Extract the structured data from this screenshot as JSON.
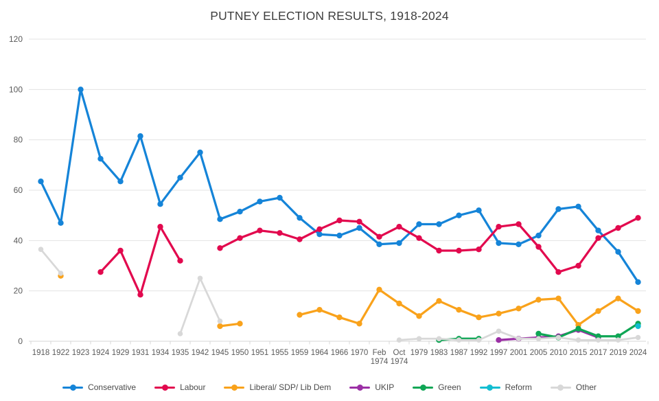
{
  "chart_data": {
    "type": "line",
    "title": "PUTNEY ELECTION RESULTS, 1918-2024",
    "xlabel": "",
    "ylabel": "",
    "ylim": [
      0,
      120
    ],
    "ytick_step": 20,
    "grid": true,
    "legend_position": "bottom",
    "axis_text_color": "#595959",
    "grid_color": "#e3e3e3",
    "zero_line_color": "#d4d4d4",
    "categories": [
      "1918",
      "1922",
      "1923",
      "1924",
      "1929",
      "1931",
      "1934",
      "1935",
      "1942",
      "1945",
      "1950",
      "1951",
      "1955",
      "1959",
      "1964",
      "1966",
      "1970",
      "Feb 1974",
      "Oct 1974",
      "1979",
      "1983",
      "1987",
      "1992",
      "1997",
      "2001",
      "2005",
      "2010",
      "2015",
      "2017",
      "2019",
      "2024"
    ],
    "series": [
      {
        "name": "Conservative",
        "color": "#1584d8",
        "values": [
          63.5,
          47,
          100,
          72.5,
          63.5,
          81.5,
          54.5,
          65,
          75,
          48.5,
          51.5,
          55.5,
          57,
          49,
          42.5,
          42,
          45,
          38.5,
          39,
          46.5,
          46.5,
          50,
          52,
          39,
          38.5,
          42,
          52.5,
          53.5,
          44,
          35.5,
          23.5
        ]
      },
      {
        "name": "Labour",
        "color": "#e2094e",
        "values": [
          null,
          null,
          null,
          27.5,
          36,
          18.5,
          45.5,
          32,
          null,
          37,
          41,
          44,
          43,
          40.5,
          44.5,
          48,
          47.5,
          41.5,
          45.5,
          41,
          36,
          36,
          36.5,
          45.5,
          46.5,
          37.5,
          27.5,
          30,
          41,
          45,
          49
        ]
      },
      {
        "name": "Liberal/ SDP/ Lib Dem",
        "color": "#f9a21b",
        "values": [
          null,
          26,
          null,
          null,
          null,
          null,
          null,
          null,
          null,
          6,
          7,
          null,
          null,
          10.5,
          12.5,
          9.5,
          7,
          20.5,
          15,
          10,
          16,
          12.5,
          9.5,
          11,
          13,
          16.5,
          17,
          6.5,
          12,
          17,
          12
        ]
      },
      {
        "name": "UKIP",
        "color": "#9b2fa5",
        "values": [
          null,
          null,
          null,
          null,
          null,
          null,
          null,
          null,
          null,
          null,
          null,
          null,
          null,
          null,
          null,
          null,
          null,
          null,
          null,
          null,
          null,
          null,
          null,
          0.5,
          1,
          1.5,
          2,
          4.5,
          1.5,
          null,
          null
        ]
      },
      {
        "name": "Green",
        "color": "#0fa655",
        "values": [
          null,
          null,
          null,
          null,
          null,
          null,
          null,
          null,
          null,
          null,
          null,
          null,
          null,
          null,
          null,
          null,
          null,
          null,
          null,
          null,
          0.5,
          1,
          1,
          null,
          null,
          3,
          1.5,
          5,
          2,
          2,
          7
        ]
      },
      {
        "name": "Reform",
        "color": "#12bdd1",
        "values": [
          null,
          null,
          null,
          null,
          null,
          null,
          null,
          null,
          null,
          null,
          null,
          null,
          null,
          null,
          null,
          null,
          null,
          null,
          null,
          null,
          null,
          null,
          null,
          null,
          null,
          null,
          null,
          null,
          null,
          null,
          6
        ]
      },
      {
        "name": "Other",
        "color": "#d8d8d8",
        "values": [
          36.5,
          27,
          null,
          null,
          null,
          null,
          null,
          3,
          25,
          8,
          null,
          null,
          null,
          null,
          null,
          null,
          null,
          null,
          0.5,
          1,
          1,
          0.5,
          0.5,
          4,
          1,
          1,
          1.5,
          0.5,
          0.5,
          0.5,
          1.5
        ]
      }
    ]
  }
}
